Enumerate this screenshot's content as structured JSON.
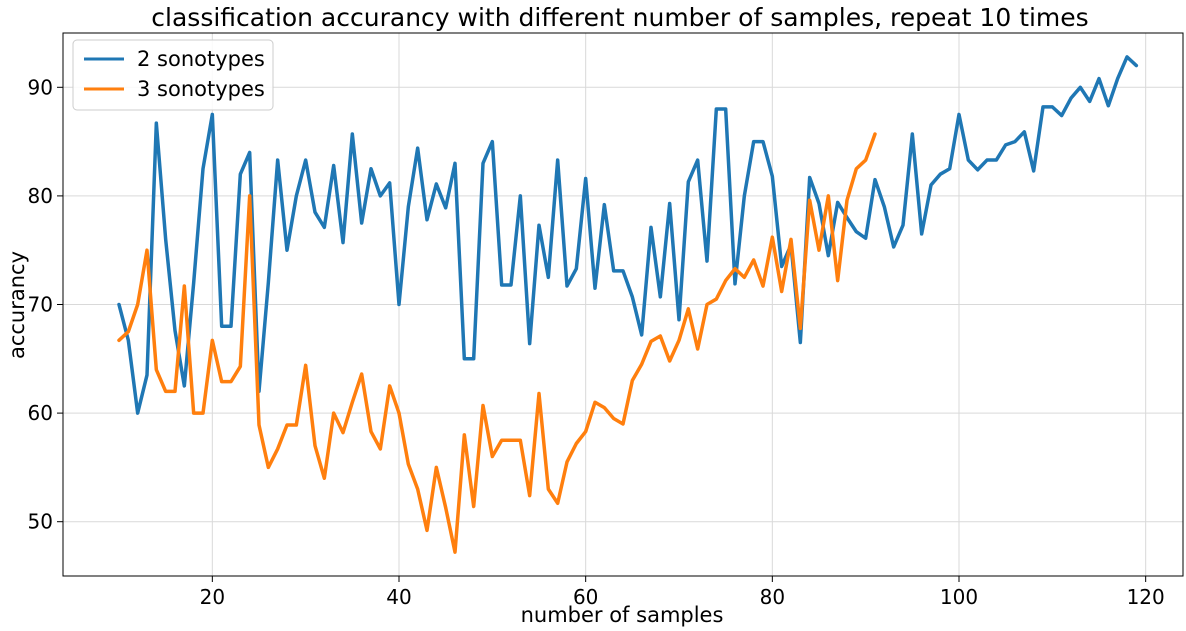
{
  "chart_data": {
    "type": "line",
    "title": "classification accurancy with different number of samples, repeat 10 times",
    "xlabel": "number of samples",
    "ylabel": "accurancy",
    "xlim": [
      4,
      124
    ],
    "ylim": [
      45,
      95
    ],
    "xticks": [
      20,
      40,
      60,
      80,
      100,
      120
    ],
    "yticks": [
      50,
      60,
      70,
      80,
      90
    ],
    "grid": true,
    "legend_position": "top-left",
    "series": [
      {
        "name": "2 sonotypes",
        "color": "#1f77b4",
        "x": [
          10,
          11,
          12,
          13,
          14,
          15,
          16,
          17,
          18,
          19,
          20,
          21,
          22,
          23,
          24,
          25,
          26,
          27,
          28,
          29,
          30,
          31,
          32,
          33,
          34,
          35,
          36,
          37,
          38,
          39,
          40,
          41,
          42,
          43,
          44,
          45,
          46,
          47,
          48,
          49,
          50,
          51,
          52,
          53,
          54,
          55,
          56,
          57,
          58,
          59,
          60,
          61,
          62,
          63,
          64,
          65,
          66,
          67,
          68,
          69,
          70,
          71,
          72,
          73,
          74,
          75,
          76,
          77,
          78,
          79,
          80,
          81,
          82,
          83,
          84,
          85,
          86,
          87,
          88,
          89,
          90,
          91,
          92,
          93,
          94,
          95,
          96,
          97,
          98,
          99,
          100,
          101,
          102,
          103,
          104,
          105,
          106,
          107,
          108,
          109,
          110,
          111,
          112,
          113,
          114,
          115,
          116,
          117,
          118,
          119
        ],
        "y": [
          70,
          66.7,
          60,
          63.5,
          86.7,
          76,
          67.6,
          62.5,
          72,
          82.5,
          87.5,
          68,
          68,
          82,
          84,
          62,
          72,
          83.3,
          75,
          80,
          83.3,
          78.5,
          77.1,
          82.8,
          75.7,
          85.7,
          77.5,
          82.5,
          80,
          81.2,
          70,
          79,
          84.4,
          77.8,
          81.1,
          78.9,
          83,
          65,
          65,
          83,
          85,
          71.8,
          71.8,
          80,
          66.4,
          77.3,
          72.5,
          83.3,
          71.7,
          73.3,
          81.6,
          71.5,
          79.2,
          73.1,
          73.1,
          70.7,
          67.2,
          77.1,
          70.7,
          79.3,
          68.6,
          81.3,
          83.3,
          74,
          88,
          88,
          71.9,
          80,
          85,
          85,
          81.8,
          73.5,
          75.5,
          66.5,
          81.7,
          79.3,
          74.5,
          79.4,
          78,
          76.7,
          76.1,
          81.5,
          79,
          75.3,
          77.3,
          85.7,
          76.5,
          81,
          82,
          82.5,
          87.5,
          83.3,
          82.4,
          83.3,
          83.3,
          84.7,
          85,
          85.9,
          82.3,
          88.2,
          88.2,
          87.4,
          89,
          90,
          88.7,
          90.8,
          88.3,
          90.8,
          92.8,
          92
        ]
      },
      {
        "name": "3 sonotypes",
        "color": "#ff7f0e",
        "x": [
          10,
          11,
          12,
          13,
          14,
          15,
          16,
          17,
          18,
          19,
          20,
          21,
          22,
          23,
          24,
          25,
          26,
          27,
          28,
          29,
          30,
          31,
          32,
          33,
          34,
          35,
          36,
          37,
          38,
          39,
          40,
          41,
          42,
          43,
          44,
          45,
          46,
          47,
          48,
          49,
          50,
          51,
          52,
          53,
          54,
          55,
          56,
          57,
          58,
          59,
          60,
          61,
          62,
          63,
          64,
          65,
          66,
          67,
          68,
          69,
          70,
          71,
          72,
          73,
          74,
          75,
          76,
          77,
          78,
          79,
          80,
          81,
          82,
          83,
          84,
          85,
          86,
          87,
          88,
          89,
          90,
          91
        ],
        "y": [
          66.7,
          67.5,
          70,
          75,
          64,
          62,
          62,
          71.7,
          60,
          60,
          66.7,
          62.9,
          62.9,
          64.3,
          80,
          58.9,
          55,
          56.7,
          58.9,
          58.9,
          64.4,
          57,
          54,
          60,
          58.2,
          61,
          63.6,
          58.3,
          56.7,
          62.5,
          60,
          55.3,
          53,
          49.2,
          55,
          51.3,
          47.2,
          58,
          51.4,
          60.7,
          56,
          57.5,
          57.5,
          57.5,
          52.4,
          61.8,
          53,
          51.7,
          55.5,
          57.2,
          58.3,
          61,
          60.5,
          59.5,
          59,
          63,
          64.5,
          66.6,
          67.1,
          64.8,
          66.7,
          69.6,
          65.9,
          70,
          70.5,
          72.2,
          73.3,
          72.5,
          74.1,
          71.7,
          76.2,
          71.2,
          76,
          67.8,
          79.6,
          75,
          80,
          72.2,
          79.6,
          82.5,
          83.3,
          85.7
        ]
      }
    ]
  }
}
